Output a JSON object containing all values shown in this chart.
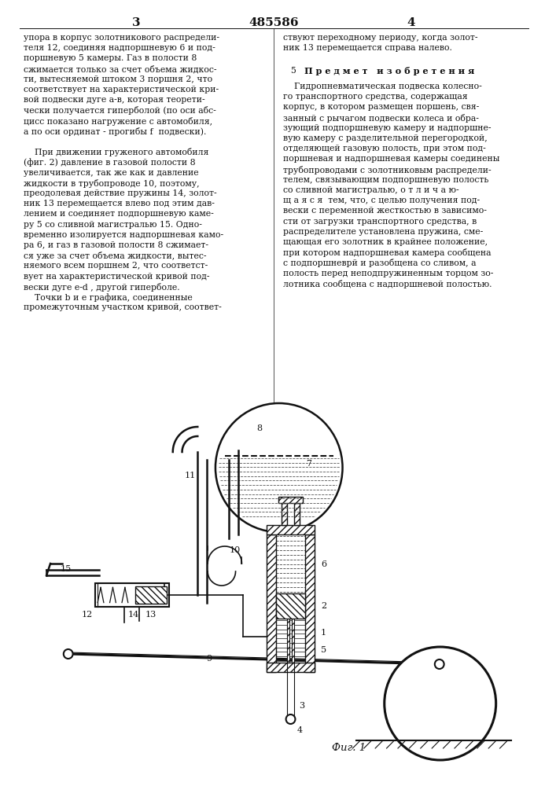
{
  "page_bg": "#ffffff",
  "text_color": "#000000",
  "page_num_left": "3",
  "page_num_center": "485586",
  "page_num_right": "4",
  "left_col_lines": [
    "упора в корпус золотникового распредели-",
    "теля 12, соединяя надпоршневую 6 и под-",
    "поршневую 5 камеры. Газ в полости 8",
    "сжимается только за счет объема жидкос-",
    "ти, вытесняемой штоком 3 поршня 2, что",
    "соответствует на характеристической кри-",
    "вой подвески дуге а-в, которая теорети-",
    "чески получается гиперболой (по оси абс-",
    "цисс показано нагружение с автомобиля,",
    "а по оси ординат - прогибы f  подвески).",
    "",
    "    При движении груженого автомобиля",
    "(фиг. 2) давление в газовой полости 8",
    "увеличивается, так же как и давление",
    "жидкости в трубопроводе 10, поэтому,",
    "преодолевая действие пружины 14, золот-",
    "ник 13 перемещается влево под этим дав-",
    "лением и соединяет подпоршневую каме-",
    "ру 5 со сливной магистралью 15. Одно-",
    "временно изолируется надпоршневая камо-",
    "ра 6, и газ в газовой полости 8 сжимает-",
    "ся уже за счет объема жидкости, вытес-",
    "няемого всем поршнем 2, что соответст-",
    "вует на характеристической кривой под-",
    "вески дуге е-d , другой гиперболе.",
    "    Точки b и e графика, соединенные",
    "промежуточным участком кривой, соответ-"
  ],
  "right_col_line1": "ствуют переходному периоду, когда золот-",
  "right_col_line2": "ник 13 перемещается справа налево.",
  "right_col_header_num": "5",
  "right_col_header": "П р е д м е т   и з о б р е т е н и я",
  "right_col_body": [
    "    Гидропневматическая подвеска колесно-",
    "го транспортного средства, содержащая",
    "корпус, в котором размещен поршень, свя-",
    "занный с рычагом подвески колеса и обра-",
    "зующий подпоршневую камеру и надпоршне-",
    "вую камеру с разделительной перегородкой,",
    "отделяющей газовую полость, при этом под-",
    "поршневая и надпоршневая камеры соединены",
    "трубопроводами с золотниковым распредели-",
    "телем, связывающим подпоршневую полость",
    "со сливной магистралью, о т л и ч а ю-",
    "щ а я с я  тем, что, с целью получения под-",
    "вески с переменной жесткостью в зависимо-",
    "сти от загрузки транспортного средства, в",
    "распределителе установлена пружина, сме-",
    "щающая его золотник в крайнее положение,",
    "при котором надпоршневая камера сообщена",
    "с подпоршневрй и разобщена со сливом, а",
    "полость перед неподпружиненным торцом зо-",
    "лотника сообщена с надпоршневой полостью."
  ],
  "fig_caption": "Фиг. 1",
  "hatch_color": "#555555",
  "line_color": "#111111"
}
